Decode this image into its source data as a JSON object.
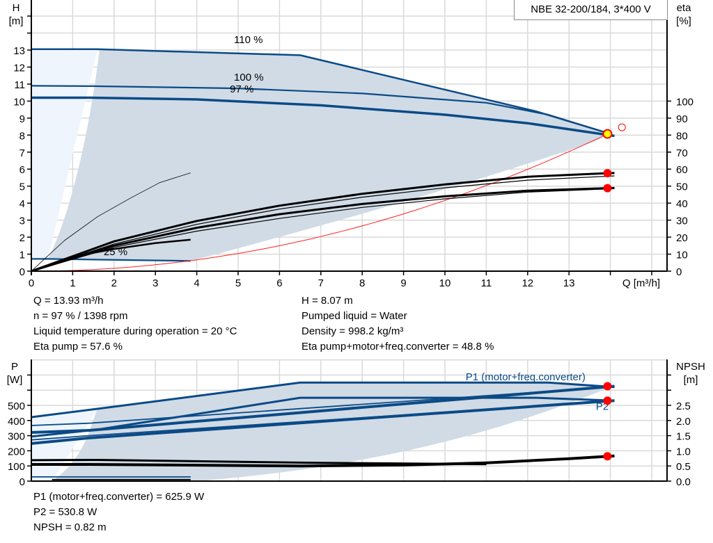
{
  "title": "NBE 32-200/184, 3*400 V",
  "colors": {
    "curve_blue": "#0b4a86",
    "area_gray": "#d0dbe6",
    "area_light": "#eef5fd",
    "eta_black": "#000000",
    "system_red": "#ff2020",
    "operating_point": "#ffff00",
    "marker_red": "#ff0000",
    "grid": "#d9d9d9"
  },
  "chart_data": [
    {
      "type": "line",
      "name_text": "pump-curve-chart",
      "xlabel": "Q [m³/h]",
      "ylabel_left": [
        "H",
        "[m]"
      ],
      "ylabel_right": [
        "eta",
        "[%]"
      ],
      "xlim": [
        0,
        15
      ],
      "ylim_left": [
        0,
        15
      ],
      "ylim_right": [
        0,
        150
      ],
      "x_ticks": [
        "0",
        "1",
        "2",
        "3",
        "4",
        "5",
        "6",
        "7",
        "8",
        "9",
        "10",
        "11",
        "12",
        "13"
      ],
      "y_ticks_left": [
        "0",
        "1",
        "2",
        "3",
        "4",
        "5",
        "6",
        "7",
        "8",
        "9",
        "10",
        "11",
        "12",
        "13"
      ],
      "y_ticks_right": [
        "0",
        "10",
        "20",
        "30",
        "40",
        "50",
        "60",
        "70",
        "80",
        "90",
        "100"
      ],
      "grid": true,
      "curve_labels": [
        {
          "text": "110 %",
          "x": 4.9,
          "y": 13.4
        },
        {
          "text": "100 %",
          "x": 4.9,
          "y": 11.2
        },
        {
          "text": "97 %",
          "x": 4.8,
          "y": 10.5
        },
        {
          "text": "25 %",
          "x": 1.75,
          "y": 0.95
        }
      ],
      "series": [
        {
          "curve": "H 110 %",
          "axis": "left",
          "points": [
            [
              0,
              13.05
            ],
            [
              1.6,
              13.05
            ],
            [
              6.5,
              12.7
            ],
            [
              12.2,
              9.4
            ],
            [
              14.0,
              8.07
            ]
          ]
        },
        {
          "curve": "H 100 %",
          "axis": "left",
          "points": [
            [
              0,
              10.9
            ],
            [
              1.45,
              10.88
            ],
            [
              5,
              10.75
            ],
            [
              8,
              10.45
            ],
            [
              11,
              9.9
            ],
            [
              12.5,
              9.2
            ],
            [
              14.0,
              8.07
            ]
          ]
        },
        {
          "curve": "H 97 %",
          "axis": "left",
          "points": [
            [
              0,
              10.2
            ],
            [
              1.4,
              10.2
            ],
            [
              4,
              10.1
            ],
            [
              7,
              9.75
            ],
            [
              10,
              9.2
            ],
            [
              12,
              8.7
            ],
            [
              14.1,
              7.95
            ]
          ]
        },
        {
          "curve": "H 25 %",
          "axis": "left",
          "points": [
            [
              0,
              0.72
            ],
            [
              0.4,
              0.72
            ],
            [
              3.85,
              0.6
            ]
          ]
        },
        {
          "curve": "system curve",
          "axis": "left",
          "points": "quadratic",
          "through": [
            13.93,
            8.07
          ]
        },
        {
          "curve": "eta pump",
          "axis": "right",
          "points": [
            [
              0,
              0
            ],
            [
              2,
              17.5
            ],
            [
              4,
              29.5
            ],
            [
              6,
              38.5
            ],
            [
              8,
              45.5
            ],
            [
              10,
              51
            ],
            [
              12,
              55.5
            ],
            [
              13.93,
              57.6
            ],
            [
              14.1,
              57.7
            ]
          ]
        },
        {
          "curve": "eta pump 2",
          "axis": "right",
          "points": [
            [
              0,
              0
            ],
            [
              2,
              16
            ],
            [
              4,
              27.5
            ],
            [
              6,
              36.5
            ],
            [
              8,
              43.5
            ],
            [
              10,
              49
            ],
            [
              12,
              53.5
            ],
            [
              14.1,
              56
            ]
          ]
        },
        {
          "curve": "eta total",
          "axis": "right",
          "points": [
            [
              0,
              0
            ],
            [
              2,
              15
            ],
            [
              4,
              25.5
            ],
            [
              6,
              33.5
            ],
            [
              8,
              39.5
            ],
            [
              10,
              44
            ],
            [
              12,
              47.3
            ],
            [
              13.93,
              48.8
            ],
            [
              14.1,
              48.9
            ]
          ]
        },
        {
          "curve": "eta total 2",
          "axis": "right",
          "points": [
            [
              0,
              0
            ],
            [
              2,
              14
            ],
            [
              4,
              23.5
            ],
            [
              6,
              31
            ],
            [
              8,
              37.5
            ],
            [
              10,
              42.5
            ],
            [
              12,
              46.5
            ],
            [
              14.1,
              48.5
            ]
          ]
        },
        {
          "curve": "eta 25 % pump",
          "axis": "right",
          "points": [
            [
              0,
              0
            ],
            [
              0.8,
              18
            ],
            [
              1.6,
              32
            ],
            [
              2.4,
              43
            ],
            [
              3.1,
              52
            ],
            [
              3.85,
              57.8
            ]
          ]
        },
        {
          "curve": "eta 25 % total",
          "axis": "right",
          "points": [
            [
              0,
              0
            ],
            [
              1,
              8.5
            ],
            [
              2,
              13
            ],
            [
              3,
              16.5
            ],
            [
              3.85,
              18.5
            ]
          ]
        }
      ],
      "operating_point": {
        "Q": 13.93,
        "H": 8.07
      },
      "eta_points": [
        57.6,
        48.8
      ],
      "max_point": {
        "Q": 14.28,
        "H": 8.46
      }
    },
    {
      "type": "line",
      "name_text": "power-npsh-chart",
      "ylabel_left": [
        "P",
        "[W]"
      ],
      "ylabel_right": [
        "NPSH",
        "[m]"
      ],
      "xlim": [
        0,
        15
      ],
      "ylim_left": [
        0,
        800
      ],
      "ylim_right": [
        0,
        4.0
      ],
      "y_ticks_left": [
        "0",
        "100",
        "200",
        "300",
        "400",
        "500"
      ],
      "y_ticks_right": [
        "0.0",
        "0.5",
        "1.0",
        "1.5",
        "2.0",
        "2.5"
      ],
      "grid": true,
      "curve_labels": [
        {
          "text": "P1 (motor+freq.converter)",
          "x": 10.5,
          "y": 665
        },
        {
          "text": "P2",
          "x": 13.65,
          "y": 470
        }
      ],
      "series": [
        {
          "curve": "P1 110 %",
          "axis": "left",
          "points": [
            [
              0,
              422
            ],
            [
              1.6,
              477
            ],
            [
              6.5,
              650
            ],
            [
              12.5,
              650
            ],
            [
              14.1,
              620
            ]
          ]
        },
        {
          "curve": "P1 100 %",
          "axis": "left",
          "points": [
            [
              0,
              367
            ],
            [
              1.4,
              382
            ],
            [
              14.1,
              622
            ]
          ]
        },
        {
          "curve": "P1 97 %",
          "axis": "left",
          "points": [
            [
              0,
              321
            ],
            [
              1.4,
              335
            ],
            [
              14.1,
              626
            ]
          ]
        },
        {
          "curve": "P2 110 %",
          "axis": "left",
          "points": [
            [
              0,
              294
            ],
            [
              1.6,
              340
            ],
            [
              6.5,
              550
            ],
            [
              12.2,
              550
            ],
            [
              14.1,
              531
            ]
          ]
        },
        {
          "curve": "P2 100 %",
          "axis": "left",
          "points": [
            [
              0,
              272
            ],
            [
              1.4,
              300
            ],
            [
              14.1,
              528
            ]
          ]
        },
        {
          "curve": "P2 97 %",
          "axis": "left",
          "points": [
            [
              0,
              248
            ],
            [
              1.4,
              285
            ],
            [
              14.1,
              531
            ]
          ]
        },
        {
          "curve": "P 25 %",
          "axis": "left",
          "points": [
            [
              0,
              28
            ],
            [
              3.85,
              28
            ]
          ]
        },
        {
          "curve": "NPSH 110 %",
          "axis": "right",
          "points": [
            [
              0,
              0.69
            ],
            [
              1.6,
              0.7
            ],
            [
              7,
              0.6
            ],
            [
              11,
              0.56
            ]
          ]
        },
        {
          "curve": "NPSH 97 %",
          "axis": "right",
          "points": [
            [
              0,
              0.55
            ],
            [
              1.4,
              0.55
            ],
            [
              6.5,
              0.5
            ],
            [
              9,
              0.53
            ],
            [
              11,
              0.6
            ],
            [
              13,
              0.74
            ],
            [
              14.1,
              0.83
            ]
          ]
        },
        {
          "curve": "NPSH 25 %",
          "axis": "right",
          "points": [
            [
              0.5,
              0.05
            ],
            [
              3.85,
              0.05
            ]
          ]
        }
      ],
      "points": {
        "P1": 625.9,
        "P2": 530.8,
        "NPSH": 0.82,
        "Q": 13.93
      }
    }
  ],
  "info_top_left": [
    "Q = 13.93 m³/h",
    "n = 97 % / 1398 rpm",
    "Liquid temperature during operation = 20 °C",
    "Eta pump = 57.6 %"
  ],
  "info_top_right": [
    "H = 8.07 m",
    "Pumped liquid = Water",
    "Density = 998.2 kg/m³",
    "Eta pump+motor+freq.converter = 48.8 %"
  ],
  "info_bottom": [
    "P1 (motor+freq.converter) = 625.9 W",
    "P2 = 530.8 W",
    "NPSH = 0.82 m"
  ]
}
